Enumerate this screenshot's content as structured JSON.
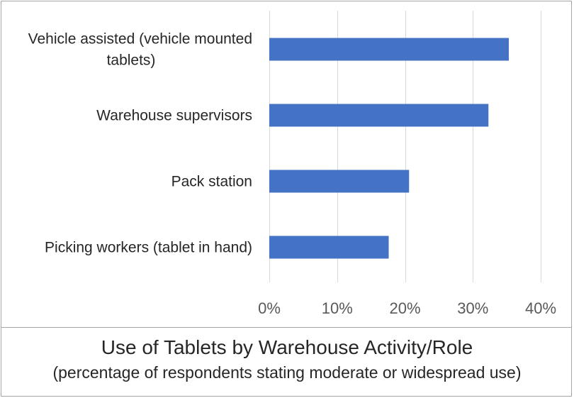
{
  "chart_data": {
    "type": "bar",
    "orientation": "horizontal",
    "categories": [
      "Vehicle assisted (vehicle mounted tablets)",
      "Warehouse supervisors",
      "Pack station",
      "Picking workers (tablet in hand)"
    ],
    "category_lines": [
      [
        "Vehicle assisted (vehicle mounted",
        "tablets)"
      ],
      [
        "Warehouse supervisors"
      ],
      [
        "Pack station"
      ],
      [
        "Picking workers (tablet in hand)"
      ]
    ],
    "values": [
      35.3,
      32.3,
      20.6,
      17.6
    ],
    "xlim": [
      0,
      40
    ],
    "xticks": [
      0,
      10,
      20,
      30,
      40
    ],
    "xtick_labels": [
      "0%",
      "10%",
      "20%",
      "30%",
      "40%"
    ],
    "grid": true,
    "bar_color": "#4472c4",
    "title": "Use of Tablets by Warehouse Activity/Role",
    "subtitle": "(percentage of respondents stating moderate or widespread use)"
  }
}
